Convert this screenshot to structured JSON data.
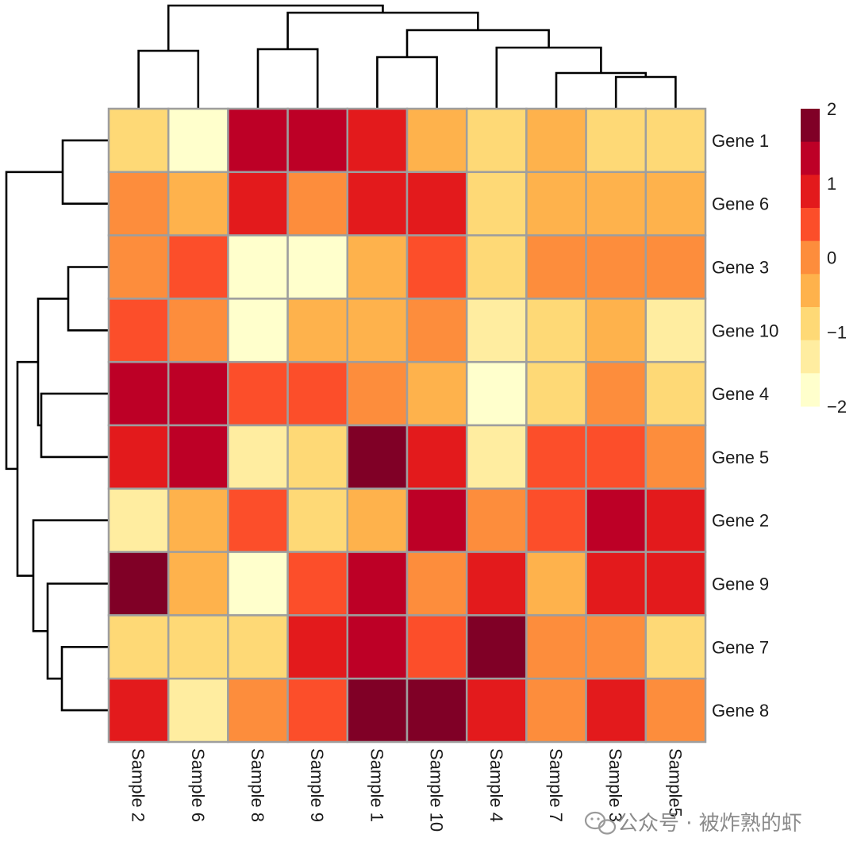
{
  "chart_data": {
    "type": "heatmap",
    "rows": [
      "Gene 1",
      "Gene 6",
      "Gene 3",
      "Gene 10",
      "Gene 4",
      "Gene 5",
      "Gene 2",
      "Gene 9",
      "Gene 7",
      "Gene 8"
    ],
    "columns": [
      "Sample 2",
      "Sample 6",
      "Sample 8",
      "Sample 9",
      "Sample 1",
      "Sample 10",
      "Sample 4",
      "Sample 7",
      "Sample 3",
      "Sample5"
    ],
    "values": [
      [
        -1,
        -2,
        1.5,
        1.5,
        1,
        -0.5,
        -1,
        -0.5,
        -1,
        -1
      ],
      [
        0,
        -0.5,
        1,
        0,
        1,
        1,
        -1,
        -0.5,
        -0.5,
        -0.5
      ],
      [
        0,
        0.5,
        -2,
        -2,
        -0.5,
        0.5,
        -1,
        0,
        0,
        0
      ],
      [
        0.5,
        0,
        -2,
        -0.5,
        -0.5,
        0,
        -1.5,
        -1,
        -0.5,
        -1.5
      ],
      [
        1.5,
        1.5,
        0.5,
        0.5,
        0,
        -0.5,
        -2,
        -1,
        0,
        -1
      ],
      [
        1,
        1.5,
        -1.5,
        -1,
        2,
        1,
        -1.5,
        0.5,
        0.5,
        0
      ],
      [
        -1.5,
        -0.5,
        0.5,
        -1,
        -0.5,
        1.5,
        0,
        0.5,
        1.5,
        1
      ],
      [
        2,
        -0.5,
        -2,
        0.5,
        1.5,
        0,
        1,
        -0.5,
        1,
        1
      ],
      [
        -1,
        -1,
        -1,
        1,
        1.5,
        0.5,
        2,
        0,
        0,
        -1
      ],
      [
        1,
        -1.5,
        0,
        0.5,
        2,
        2,
        1,
        0,
        1,
        0
      ]
    ],
    "color_scale": {
      "min": -2,
      "max": 2,
      "colors": [
        "#FFFFCC",
        "#FFEDA0",
        "#FED976",
        "#FEB24C",
        "#FD8D3C",
        "#FC4E2A",
        "#E31A1C",
        "#BD0026",
        "#800026"
      ]
    },
    "legend": {
      "ticks": [
        2,
        1,
        0,
        -1,
        -2
      ],
      "tick_labels": [
        "2",
        "1",
        "0",
        "−1",
        "−2"
      ],
      "placement": "right"
    },
    "row_dendrogram": "left",
    "column_dendrogram": "top"
  },
  "watermark": {
    "text": "公众号 · 被炸熟的虾",
    "icon": "wechat-icon"
  }
}
